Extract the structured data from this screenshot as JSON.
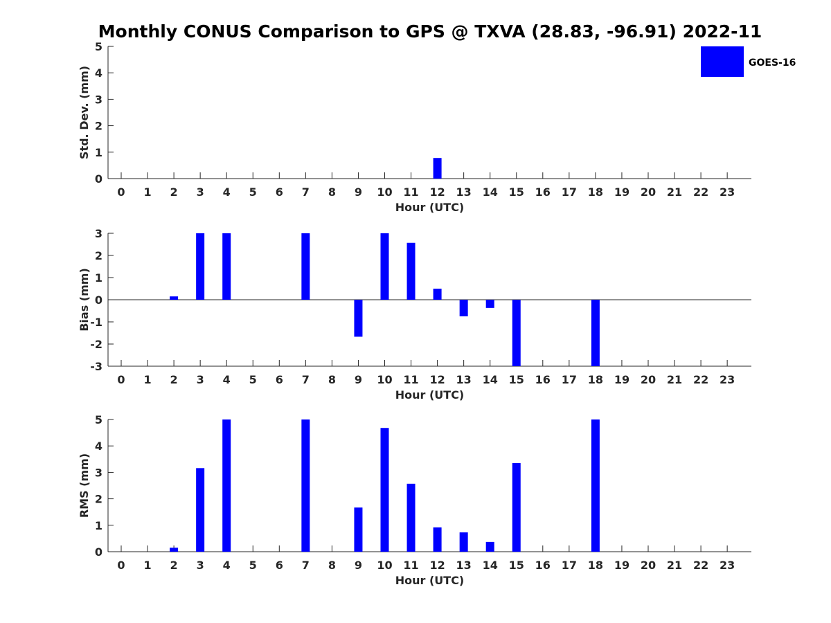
{
  "chart_data": {
    "type": "bar",
    "title": "Monthly CONUS Comparison to GPS @ TXVA (28.83, -96.91) 2022-11",
    "legend": {
      "label": "GOES-16",
      "placement": "top-right"
    },
    "series_color": "#0000ff",
    "categories": [
      "0",
      "1",
      "2",
      "3",
      "4",
      "5",
      "6",
      "7",
      "8",
      "9",
      "10",
      "11",
      "12",
      "13",
      "14",
      "15",
      "16",
      "17",
      "18",
      "19",
      "20",
      "21",
      "22",
      "23"
    ],
    "panels": [
      {
        "name": "std-dev",
        "ylabel": "Std. Dev. (mm)",
        "xlabel": "Hour (UTC)",
        "ylim": [
          0,
          5
        ],
        "yticks": [
          "0",
          "1",
          "2",
          "3",
          "4",
          "5"
        ],
        "values": [
          null,
          null,
          null,
          null,
          null,
          null,
          null,
          null,
          null,
          null,
          null,
          null,
          0.78,
          null,
          null,
          null,
          null,
          null,
          null,
          null,
          null,
          null,
          null,
          null
        ]
      },
      {
        "name": "bias",
        "ylabel": "Bias (mm)",
        "xlabel": "Hour (UTC)",
        "ylim": [
          -3,
          3
        ],
        "yticks": [
          "-3",
          "-2",
          "-1",
          "0",
          "1",
          "2",
          "3"
        ],
        "values": [
          null,
          null,
          0.15,
          3.0,
          3.0,
          null,
          null,
          3.0,
          null,
          -1.67,
          3.0,
          2.57,
          0.5,
          -0.75,
          -0.37,
          -3.0,
          null,
          null,
          -3.0,
          null,
          null,
          null,
          null,
          null
        ]
      },
      {
        "name": "rms",
        "ylabel": "RMS (mm)",
        "xlabel": "Hour (UTC)",
        "ylim": [
          0,
          5
        ],
        "yticks": [
          "0",
          "1",
          "2",
          "3",
          "4",
          "5"
        ],
        "values": [
          null,
          null,
          0.15,
          3.16,
          5.0,
          null,
          null,
          5.0,
          null,
          1.67,
          4.68,
          2.57,
          0.92,
          0.73,
          0.37,
          3.35,
          null,
          null,
          5.0,
          null,
          null,
          null,
          null,
          null
        ]
      }
    ]
  }
}
